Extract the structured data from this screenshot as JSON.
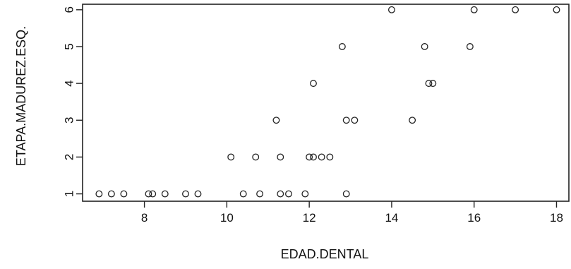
{
  "chart_data": {
    "type": "scatter",
    "xlabel": "EDAD.DENTAL",
    "ylabel": "ETAPA.MADUREZ.ESQ.",
    "xlim": [
      6.5,
      18.3
    ],
    "ylim": [
      0.8,
      6.15
    ],
    "x_ticks": [
      8,
      10,
      12,
      14,
      16,
      18
    ],
    "y_ticks": [
      1,
      2,
      3,
      4,
      5,
      6
    ],
    "grid": false,
    "marker": "open-circle",
    "points": [
      {
        "x": 6.9,
        "y": 1
      },
      {
        "x": 7.2,
        "y": 1
      },
      {
        "x": 7.5,
        "y": 1
      },
      {
        "x": 8.1,
        "y": 1
      },
      {
        "x": 8.2,
        "y": 1
      },
      {
        "x": 8.5,
        "y": 1
      },
      {
        "x": 9.0,
        "y": 1
      },
      {
        "x": 9.3,
        "y": 1
      },
      {
        "x": 10.4,
        "y": 1
      },
      {
        "x": 10.8,
        "y": 1
      },
      {
        "x": 11.3,
        "y": 1
      },
      {
        "x": 11.5,
        "y": 1
      },
      {
        "x": 11.9,
        "y": 1
      },
      {
        "x": 12.9,
        "y": 1
      },
      {
        "x": 10.1,
        "y": 2
      },
      {
        "x": 10.7,
        "y": 2
      },
      {
        "x": 11.3,
        "y": 2
      },
      {
        "x": 12.0,
        "y": 2
      },
      {
        "x": 12.1,
        "y": 2
      },
      {
        "x": 12.3,
        "y": 2
      },
      {
        "x": 12.5,
        "y": 2
      },
      {
        "x": 11.2,
        "y": 3
      },
      {
        "x": 12.9,
        "y": 3
      },
      {
        "x": 13.1,
        "y": 3
      },
      {
        "x": 14.5,
        "y": 3
      },
      {
        "x": 12.1,
        "y": 4
      },
      {
        "x": 14.9,
        "y": 4
      },
      {
        "x": 15.0,
        "y": 4
      },
      {
        "x": 12.8,
        "y": 5
      },
      {
        "x": 14.8,
        "y": 5
      },
      {
        "x": 15.9,
        "y": 5
      },
      {
        "x": 14.0,
        "y": 6
      },
      {
        "x": 16.0,
        "y": 6
      },
      {
        "x": 17.0,
        "y": 6
      },
      {
        "x": 18.0,
        "y": 6
      }
    ]
  }
}
